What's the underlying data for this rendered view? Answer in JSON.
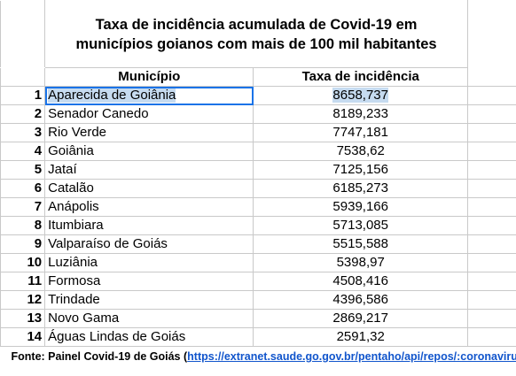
{
  "title_line1": "Taxa de incidência acumulada de Covid-19 em",
  "title_line2": "municípios goianos com mais de 100 mil habitantes",
  "headers": {
    "municipio": "Município",
    "taxa": "Taxa de incidência"
  },
  "rows": [
    {
      "n": "1",
      "name": "Aparecida de Goiânia",
      "rate": "8658,737"
    },
    {
      "n": "2",
      "name": "Senador Canedo",
      "rate": "8189,233"
    },
    {
      "n": "3",
      "name": "Rio Verde",
      "rate": "7747,181"
    },
    {
      "n": "4",
      "name": "Goiânia",
      "rate": "7538,62"
    },
    {
      "n": "5",
      "name": "Jataí",
      "rate": "7125,156"
    },
    {
      "n": "6",
      "name": "Catalão",
      "rate": "6185,273"
    },
    {
      "n": "7",
      "name": "Anápolis",
      "rate": "5939,166"
    },
    {
      "n": "8",
      "name": "Itumbiara",
      "rate": "5713,085"
    },
    {
      "n": "9",
      "name": "Valparaíso de Goiás",
      "rate": "5515,588"
    },
    {
      "n": "10",
      "name": "Luziânia",
      "rate": "5398,97"
    },
    {
      "n": "11",
      "name": "Formosa",
      "rate": "4508,416"
    },
    {
      "n": "12",
      "name": "Trindade",
      "rate": "4396,586"
    },
    {
      "n": "13",
      "name": "Novo Gama",
      "rate": "2869,217"
    },
    {
      "n": "14",
      "name": "Águas Lindas de Goiás",
      "rate": "2591,32"
    }
  ],
  "footer": {
    "prefix": "Fonte: Painel Covid-19 de Goiás (",
    "link": "https://extranet.saude.go.gov.br/pentaho/api/repos/:coronavirus:"
  },
  "colors": {
    "selection_fill": "#c6dbf0",
    "selection_border": "#1a73e8",
    "link": "#1155cc"
  }
}
